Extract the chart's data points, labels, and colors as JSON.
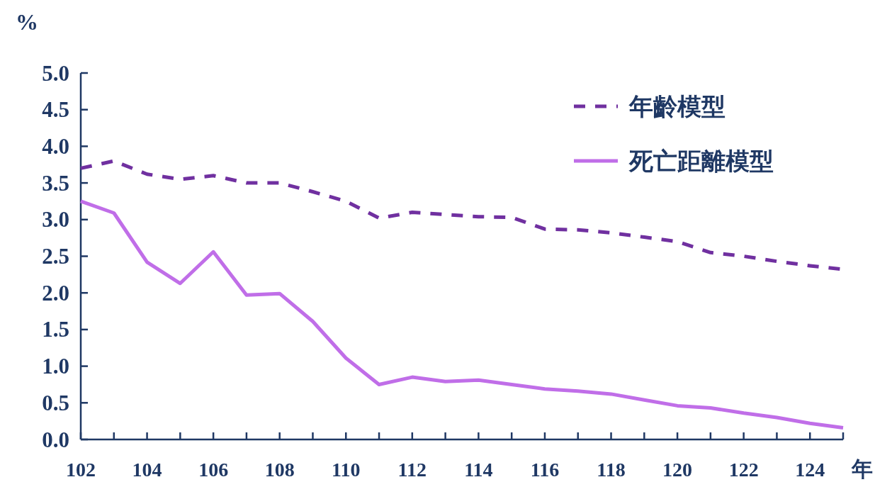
{
  "chart_data": {
    "type": "line",
    "xlabel": "年",
    "ylabel": "%",
    "x": [
      102,
      103,
      104,
      105,
      106,
      107,
      108,
      109,
      110,
      111,
      112,
      113,
      114,
      115,
      116,
      117,
      118,
      119,
      120,
      121,
      122,
      123,
      124,
      125
    ],
    "xlim": [
      102,
      125
    ],
    "xticks": [
      102,
      {
        "value": 103,
        "label": null
      },
      104,
      {
        "value": 105,
        "label": null
      },
      106,
      {
        "value": 107,
        "label": null
      },
      108,
      {
        "value": 109,
        "label": null
      },
      110,
      {
        "value": 111,
        "label": null
      },
      112,
      {
        "value": 113,
        "label": null
      },
      114,
      {
        "value": 115,
        "label": null
      },
      116,
      {
        "value": 117,
        "label": null
      },
      118,
      {
        "value": 119,
        "label": null
      },
      120,
      {
        "value": 121,
        "label": null
      },
      122,
      {
        "value": 123,
        "label": null
      },
      124,
      {
        "value": 125,
        "label": null
      }
    ],
    "ylim": [
      0,
      5
    ],
    "yticks": [
      {
        "value": 0,
        "label": "0.0"
      },
      0.5,
      {
        "value": 1,
        "label": "1.0"
      },
      1.5,
      {
        "value": 2,
        "label": "2.0"
      },
      2.5,
      {
        "value": 3,
        "label": "3.0"
      },
      3.5,
      {
        "value": 4,
        "label": "4.0"
      },
      4.5,
      {
        "value": 5,
        "label": "5.0"
      }
    ],
    "legend": "top right",
    "series": [
      {
        "name": "年齡模型",
        "color": "#7030a0",
        "line_style": "dashed",
        "values": [
          3.7,
          3.8,
          3.62,
          3.55,
          3.6,
          3.5,
          3.5,
          3.38,
          3.25,
          3.02,
          3.1,
          3.07,
          3.04,
          3.03,
          2.87,
          2.86,
          2.82,
          2.76,
          2.7,
          2.55,
          2.5,
          2.43,
          2.37,
          2.32
        ]
      },
      {
        "name": "死亡距離模型",
        "color": "#c06ee8",
        "line_style": "solid",
        "values": [
          3.25,
          3.09,
          2.42,
          2.13,
          2.56,
          1.97,
          1.99,
          1.61,
          1.11,
          0.75,
          0.85,
          0.79,
          0.81,
          0.75,
          0.69,
          0.66,
          0.62,
          0.54,
          0.46,
          0.43,
          0.36,
          0.3,
          0.22,
          0.16
        ]
      }
    ]
  }
}
